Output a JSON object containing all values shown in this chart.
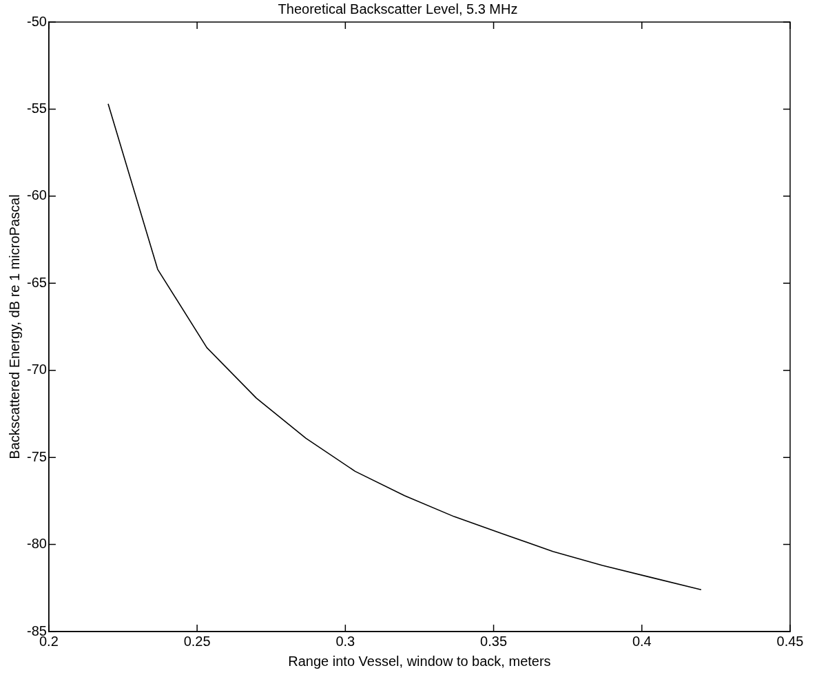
{
  "chart_data": {
    "type": "line",
    "title": "Theoretical Backscatter Level, 5.3 MHz",
    "xlabel": "Range into Vessel, window to back, meters",
    "ylabel": "Backscattered Energy, dB re 1 microPascal",
    "x": [
      0.22,
      0.2367,
      0.2533,
      0.27,
      0.2867,
      0.3033,
      0.32,
      0.3367,
      0.3533,
      0.37,
      0.3867,
      0.4033,
      0.42
    ],
    "series": [
      {
        "color": "#000000",
        "values": [
          -54.7,
          -64.2,
          -68.7,
          -71.6,
          -73.9,
          -75.8,
          -77.2,
          -78.4,
          -79.4,
          -80.4,
          -81.2,
          -81.9,
          -82.6
        ]
      }
    ],
    "xlim": [
      0.2,
      0.45
    ],
    "xticks": [
      0.2,
      0.25,
      0.3,
      0.35,
      0.4,
      0.45
    ],
    "ylim": [
      -85,
      -50
    ],
    "yticks": [
      -85,
      -80,
      -75,
      -70,
      -65,
      -60,
      -55,
      -50
    ],
    "legend": false,
    "marker": "none",
    "line_style": "solid"
  }
}
